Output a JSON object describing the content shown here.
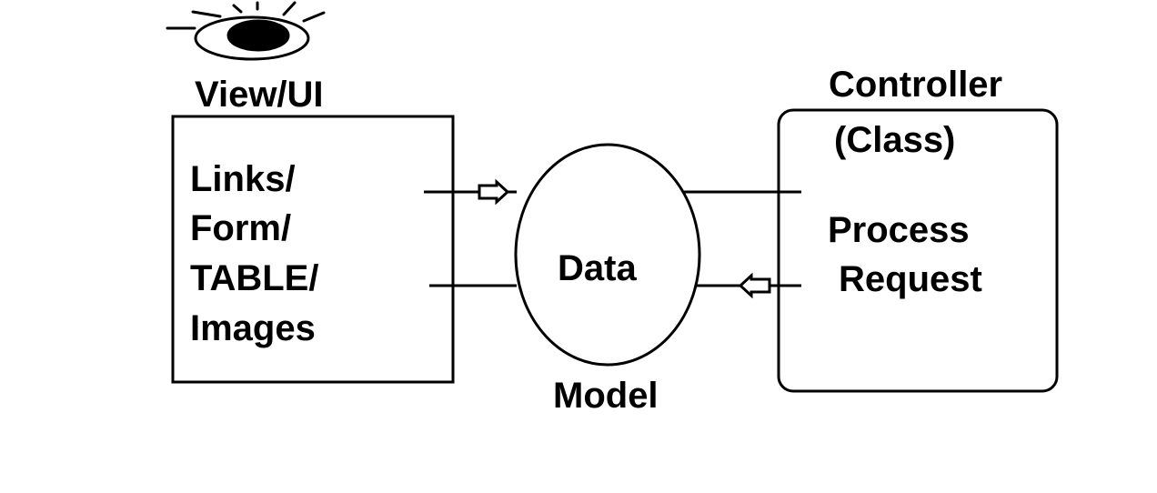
{
  "view": {
    "title": "View/UI",
    "lines": [
      "Links/",
      "Form/",
      "TABLE/",
      "Images"
    ],
    "icon": "eye-icon"
  },
  "model": {
    "data_label": "Data",
    "title": "Model"
  },
  "controller": {
    "title": "Controller",
    "subtitle": "(Class)",
    "lines": [
      "Process",
      "Request"
    ]
  },
  "colors": {
    "stroke": "#000000",
    "background": "#ffffff"
  }
}
